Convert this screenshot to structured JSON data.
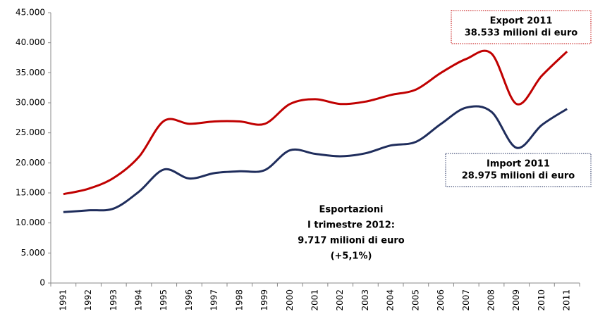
{
  "chart_data": {
    "type": "line",
    "categories": [
      "1991",
      "1992",
      "1993",
      "1994",
      "1995",
      "1996",
      "1997",
      "1998",
      "1999",
      "2000",
      "2001",
      "2002",
      "2003",
      "2004",
      "2005",
      "2006",
      "2007",
      "2008",
      "2009",
      "2010",
      "2011"
    ],
    "series": [
      {
        "name": "Export",
        "color": "#c00000",
        "values": [
          14800,
          15700,
          17500,
          21000,
          27000,
          26500,
          26900,
          26900,
          26500,
          29800,
          30600,
          29800,
          30200,
          31300,
          32200,
          35000,
          37300,
          38200,
          29800,
          34500,
          38533
        ]
      },
      {
        "name": "Import",
        "color": "#1f2d5c",
        "values": [
          11800,
          12100,
          12400,
          15200,
          18900,
          17400,
          18300,
          18600,
          18800,
          22100,
          21500,
          21100,
          21600,
          22900,
          23500,
          26500,
          29200,
          28500,
          22500,
          26300,
          28975
        ]
      }
    ],
    "ylim": [
      0,
      45000
    ],
    "yticks": [
      0,
      {
        "value": 5000,
        "label": "5.000"
      },
      {
        "value": 10000,
        "label": "10.000"
      },
      {
        "value": 15000,
        "label": "15.000"
      },
      {
        "value": 20000,
        "label": "20.000"
      },
      {
        "value": 25000,
        "label": "25.000"
      },
      {
        "value": 30000,
        "label": "30.000"
      },
      {
        "value": 35000,
        "label": "35.000"
      },
      {
        "value": 40000,
        "label": "40.000"
      },
      {
        "value": 45000,
        "label": "45.000"
      }
    ],
    "annotations": [
      {
        "text": [
          "Export 2011",
          "38.533 milioni di euro"
        ],
        "color": "#c00000"
      },
      {
        "text": [
          "Import 2011",
          "28.975 milioni di euro"
        ],
        "color": "#1f2d5c"
      },
      {
        "text": [
          "Esportazioni",
          "I trimestre 2012:",
          "9.717 milioni di euro",
          "(+5,1%)"
        ],
        "color": "#1e8fd6"
      }
    ]
  }
}
